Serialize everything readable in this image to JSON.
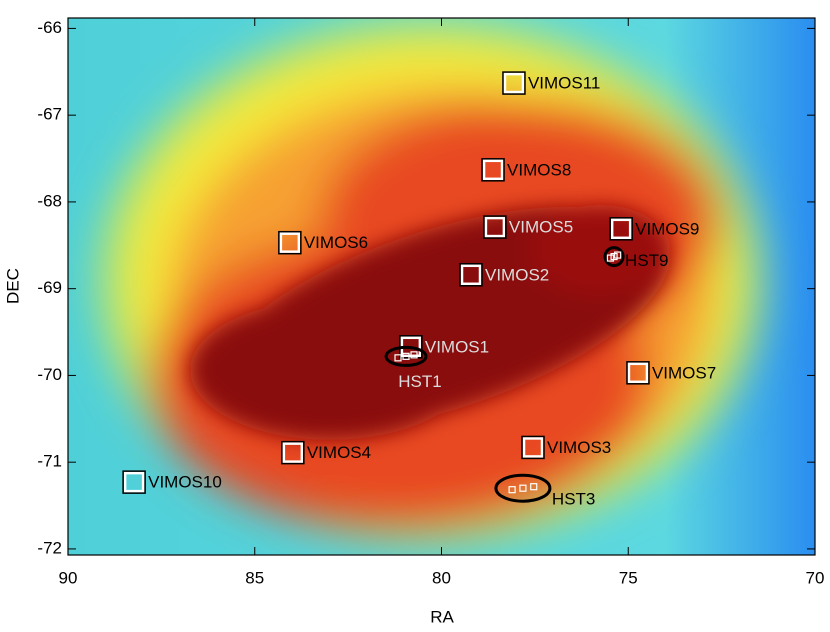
{
  "chart_data": {
    "type": "scatter",
    "xlabel": "RA",
    "ylabel": "DEC",
    "xlim": [
      90,
      70
    ],
    "ylim": [
      -72.07,
      -65.88
    ],
    "xticks": [
      90,
      85,
      80,
      75,
      70
    ],
    "yticks": [
      -66,
      -67,
      -68,
      -69,
      -70,
      -71,
      -72
    ],
    "fields": [
      {
        "label": "VIMOS11",
        "x": 78.06,
        "y": -66.63,
        "marker": "square",
        "label_color": "#000000"
      },
      {
        "label": "VIMOS8",
        "x": 78.62,
        "y": -67.63,
        "marker": "square",
        "label_color": "#000000"
      },
      {
        "label": "VIMOS5",
        "x": 78.57,
        "y": -68.29,
        "marker": "square",
        "label_color": "#dddddd"
      },
      {
        "label": "VIMOS9",
        "x": 75.19,
        "y": -68.31,
        "marker": "square",
        "label_color": "#000000"
      },
      {
        "label": "VIMOS6",
        "x": 84.06,
        "y": -68.47,
        "marker": "square",
        "label_color": "#000000"
      },
      {
        "label": "VIMOS2",
        "x": 79.21,
        "y": -68.84,
        "marker": "square",
        "label_color": "#dddddd"
      },
      {
        "label": "VIMOS1",
        "x": 80.82,
        "y": -69.67,
        "marker": "square",
        "label_color": "#dddddd"
      },
      {
        "label": "VIMOS7",
        "x": 74.74,
        "y": -69.97,
        "marker": "square",
        "label_color": "#000000"
      },
      {
        "label": "VIMOS3",
        "x": 77.55,
        "y": -70.83,
        "marker": "square",
        "label_color": "#000000"
      },
      {
        "label": "VIMOS4",
        "x": 83.98,
        "y": -70.89,
        "marker": "square",
        "label_color": "#000000"
      },
      {
        "label": "VIMOS10",
        "x": 88.23,
        "y": -71.23,
        "marker": "square",
        "label_color": "#000000"
      },
      {
        "label": "HST9",
        "x": 75.38,
        "y": -68.63,
        "marker": "ellipse",
        "label_color": "#000000"
      },
      {
        "label": "HST1",
        "x": 80.95,
        "y": -69.78,
        "marker": "ellipse",
        "label_color": "#dddddd"
      },
      {
        "label": "HST3",
        "x": 77.82,
        "y": -71.3,
        "marker": "ellipse",
        "label_color": "#000000"
      }
    ]
  }
}
